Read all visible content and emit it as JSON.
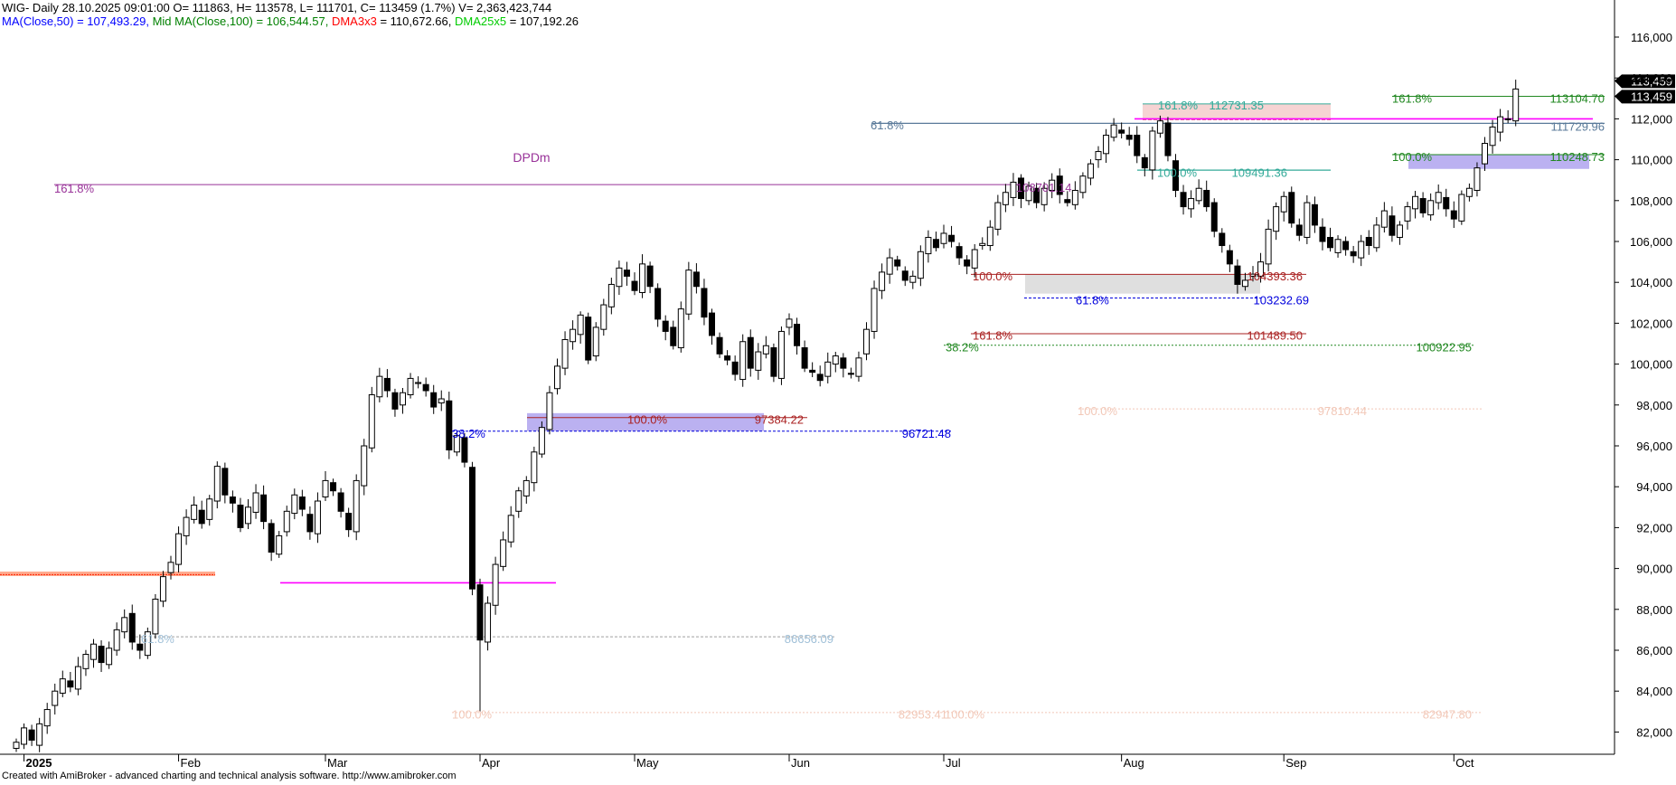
{
  "header": {
    "line1": "WIG- Daily 28.10.2025 09:01:00 O= 111863, H= 113578, L= 111701, C= 113459 (1.7%) V= 2,363,423,744",
    "ma50": "MA(Close,50) = 107,493.29,",
    "ma100": "Mid MA(Close,100) = 106,544.57,",
    "dma3": "DMA3x3",
    "dma3_val": "= 110,672.66,",
    "dma25": "DMA25x5",
    "dma25_val": "= 107,192.26"
  },
  "footer": "Created with AmiBroker - advanced charting and technical analysis software. http://www.amibroker.com",
  "colors": {
    "ma50": "#0000ff",
    "ma100": "#008000",
    "dma3": "#ff0000",
    "dma25": "#00cc00",
    "magenta": "#ff00ff",
    "purple": "#993399",
    "teal": "#33aa99",
    "blue_fib": "#0000dd",
    "brown": "#aa2222",
    "green_fib": "#228822",
    "faint": "#f2c8b8",
    "steel": "#5a7a9a"
  },
  "chart_data": {
    "type": "candlestick",
    "ylim": [
      81000,
      117000
    ],
    "y_ticks": [
      82000,
      84000,
      86000,
      88000,
      90000,
      92000,
      94000,
      96000,
      98000,
      100000,
      102000,
      104000,
      106000,
      108000,
      110000,
      112000,
      114000,
      116000
    ],
    "y_tick_labels": [
      "82,000",
      "84,000",
      "86,000",
      "88,000",
      "90,000",
      "92,000",
      "94,000",
      "96,000",
      "98,000",
      "100,000",
      "102,000",
      "104,000",
      "106,000",
      "108,000",
      "110,000",
      "112,000",
      "114,000",
      "116,000"
    ],
    "x_labels": [
      {
        "label": "2025",
        "day": 1,
        "bold": true
      },
      {
        "label": "Feb",
        "day": 21
      },
      {
        "label": "Mar",
        "day": 40
      },
      {
        "label": "Apr",
        "day": 60
      },
      {
        "label": "May",
        "day": 80
      },
      {
        "label": "Jun",
        "day": 100
      },
      {
        "label": "Jul",
        "day": 120
      },
      {
        "label": "Aug",
        "day": 143
      },
      {
        "label": "Sep",
        "day": 164
      },
      {
        "label": "Oct",
        "day": 186
      }
    ],
    "last_price_labels": [
      "113,459",
      "113,459"
    ],
    "last_close": 113459,
    "closes": [
      81500,
      82200,
      81600,
      82400,
      83100,
      84000,
      84600,
      84200,
      85200,
      85800,
      86300,
      85400,
      86100,
      87000,
      87600,
      86400,
      86000,
      86900,
      88500,
      89600,
      90300,
      91700,
      92500,
      93100,
      92200,
      93400,
      95000,
      93600,
      93200,
      92000,
      93000,
      93700,
      92300,
      90800,
      91600,
      92800,
      93600,
      92900,
      91800,
      93300,
      94300,
      93800,
      92800,
      91900,
      94300,
      96000,
      98500,
      99400,
      98700,
      97800,
      98600,
      99300,
      99100,
      98700,
      97900,
      98300,
      95800,
      96500,
      95200,
      89000,
      86500,
      88300,
      90200,
      91400,
      92600,
      93800,
      94300,
      95700,
      96900,
      98600,
      99900,
      101200,
      101700,
      102400,
      100200,
      101800,
      102900,
      103900,
      104700,
      104300,
      103600,
      104900,
      103800,
      102200,
      101600,
      100900,
      102700,
      104600,
      103800,
      102300,
      101400,
      100500,
      100200,
      99500,
      101100,
      99800,
      100600,
      100900,
      99400,
      101600,
      102200,
      100900,
      99800,
      99600,
      99200,
      100100,
      100400,
      99800,
      99500,
      100300,
      101700,
      103700,
      104500,
      105200,
      104800,
      104100,
      104300,
      105500,
      106200,
      105700,
      106400,
      106000,
      105200,
      104800,
      105600,
      105900,
      106700,
      107900,
      108400,
      108900,
      108100,
      108700,
      107900,
      108600,
      109000,
      108300,
      107900,
      108500,
      109200,
      109800,
      110400,
      111200,
      111700,
      111300,
      111000,
      110200,
      109600,
      111400,
      111900,
      110200,
      108500,
      107700,
      108100,
      108600,
      107700,
      106500,
      105800,
      104900,
      103900,
      104100,
      104400,
      105000,
      106600,
      107700,
      108200,
      106900,
      106300,
      107900,
      106800,
      106000,
      105700,
      106100,
      105600,
      105300,
      106000,
      105800,
      106800,
      107500,
      106300,
      106800,
      107700,
      108200,
      107400,
      108000,
      108400,
      107600,
      107100,
      108300,
      108600,
      109600,
      110800,
      111600,
      112100,
      112000,
      113459
    ],
    "fib_levels": [
      {
        "label": "161.8%",
        "value": 108780
      },
      {
        "label": "DPDm",
        "value": 108780
      },
      {
        "label": "61.8%",
        "value": 111780
      },
      {
        "label": "161.8%",
        "value": 112290
      },
      {
        "label": "112731.35",
        "value": 112731.35
      },
      {
        "label": "100.0%",
        "value": 109491
      },
      {
        "label": "109491.36",
        "value": 109491.36
      },
      {
        "label": "100.0%",
        "value": 104393
      },
      {
        "label": "104393.36",
        "value": 104393.36
      },
      {
        "label": "61.8%",
        "value": 103232
      },
      {
        "label": "103232.69",
        "value": 103232.69
      },
      {
        "label": "161.8%",
        "value": 101489
      },
      {
        "label": "101489.50",
        "value": 101489.5
      },
      {
        "label": "38.2%",
        "value": 100922
      },
      {
        "label": "100922.95",
        "value": 100922.95
      },
      {
        "label": "100.0%",
        "value": 97384
      },
      {
        "label": "97384.22",
        "value": 97384.22
      },
      {
        "label": "38.2%",
        "value": 96721
      },
      {
        "label": "96721.48",
        "value": 96721.48
      },
      {
        "label": "161.8%",
        "value": 111730
      },
      {
        "label": "113104.70",
        "value": 113104.7
      },
      {
        "label": "111729.96",
        "value": 111729.96
      },
      {
        "label": "100.0%",
        "value": 110248
      },
      {
        "label": "110248.73",
        "value": 110248.73
      },
      {
        "label": "100.0%",
        "value": 97810
      },
      {
        "label": "97810.44",
        "value": 97810.44
      },
      {
        "label": "61.8%",
        "value": 86656
      },
      {
        "label": "86656.09",
        "value": 86656.09
      },
      {
        "label": "100.0%",
        "value": 82953
      },
      {
        "label": "82953.41",
        "value": 82953.41
      },
      {
        "label": "100.0%",
        "value": 82953
      },
      {
        "label": "82947.80",
        "value": 82947.8
      },
      {
        "label": "108701.14",
        "value": 108701.14
      }
    ]
  }
}
